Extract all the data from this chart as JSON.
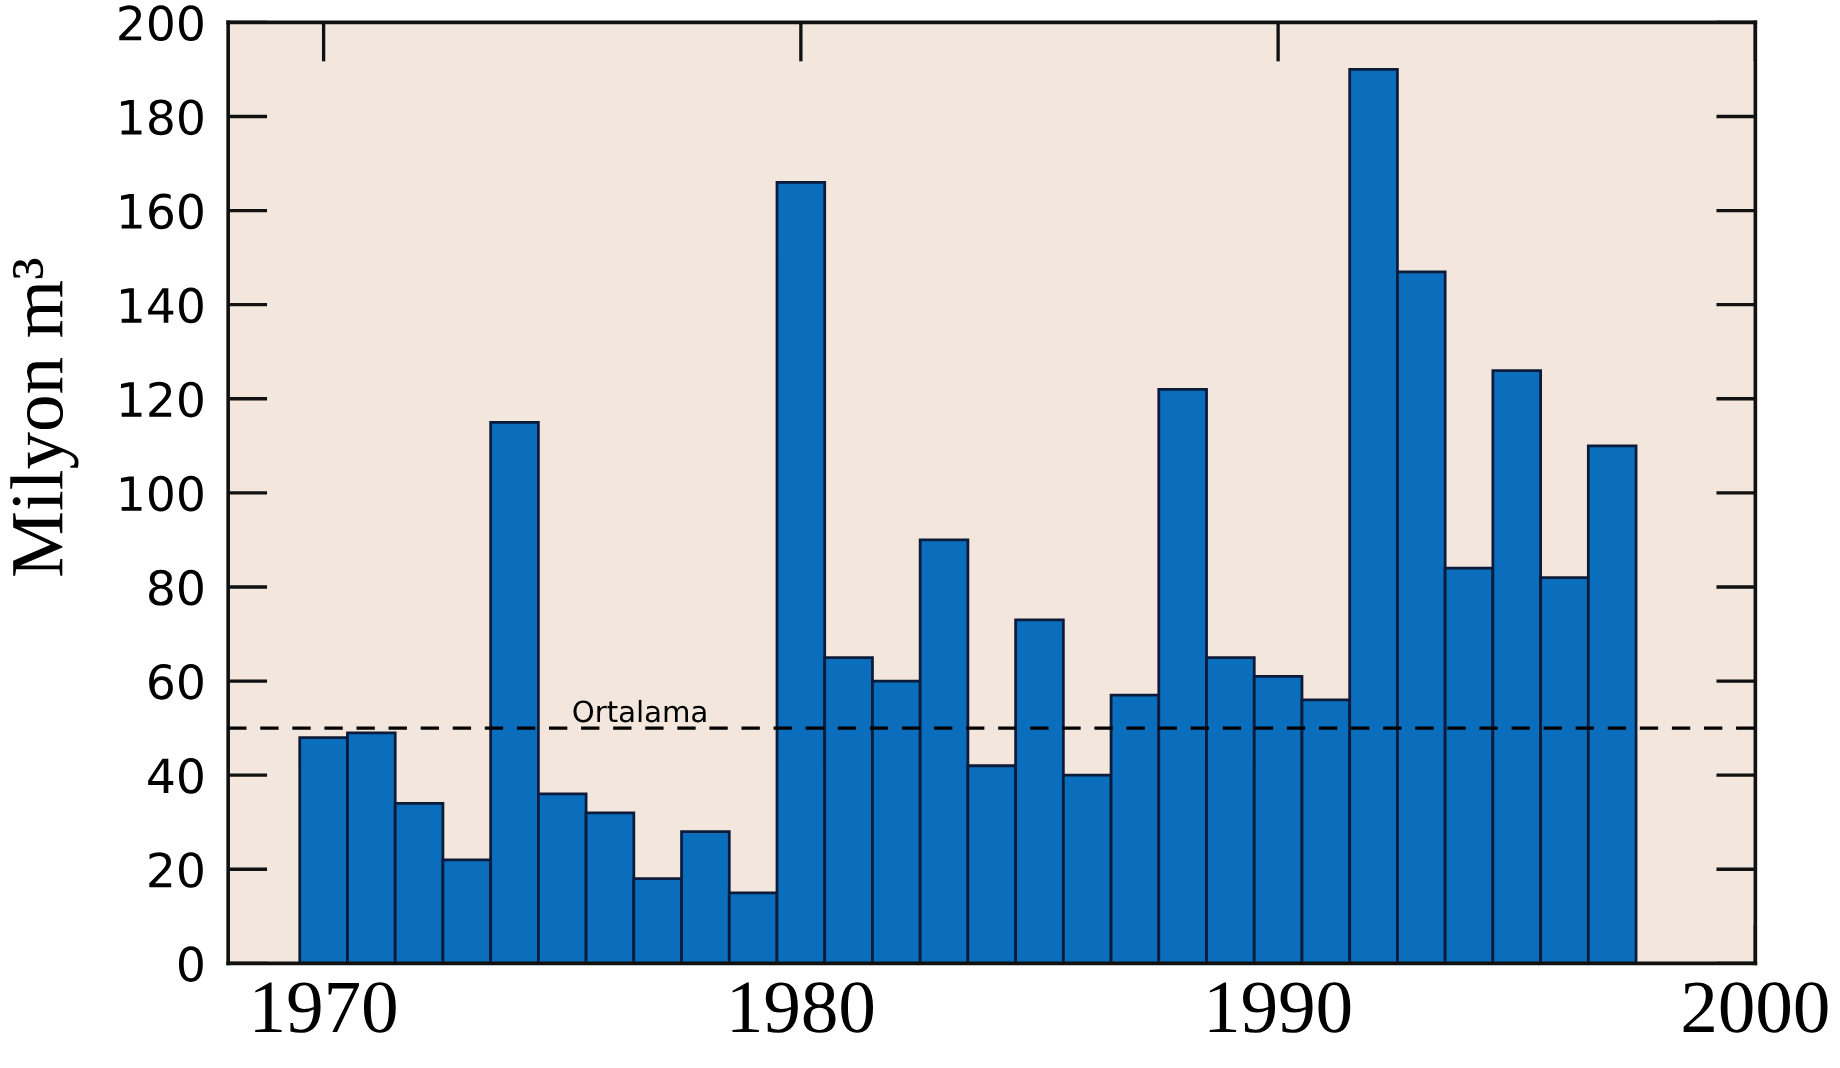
{
  "chart_data": {
    "type": "bar",
    "x": [
      1970,
      1971,
      1972,
      1973,
      1974,
      1975,
      1976,
      1977,
      1978,
      1979,
      1980,
      1981,
      1982,
      1983,
      1984,
      1985,
      1986,
      1987,
      1988,
      1989,
      1990,
      1991,
      1992,
      1993,
      1994,
      1995,
      1996,
      1997
    ],
    "values": [
      48,
      49,
      34,
      22,
      115,
      36,
      32,
      18,
      28,
      15,
      166,
      65,
      60,
      90,
      42,
      73,
      40,
      57,
      122,
      65,
      61,
      56,
      190,
      147,
      84,
      126,
      82,
      110
    ],
    "color": "#0a6ebd",
    "ylabel": "Milyon m³",
    "xlim": [
      1968,
      2000
    ],
    "xticks": [
      1970,
      1980,
      1990,
      2000
    ],
    "ylim": [
      0,
      200
    ],
    "yticks": [
      0,
      20,
      40,
      60,
      80,
      100,
      120,
      140,
      160,
      180,
      200
    ],
    "ref_lines": [
      {
        "axis": "y",
        "value": 50,
        "label": "Ortalama",
        "line_style": "dashed",
        "color": "#000000"
      }
    ]
  }
}
